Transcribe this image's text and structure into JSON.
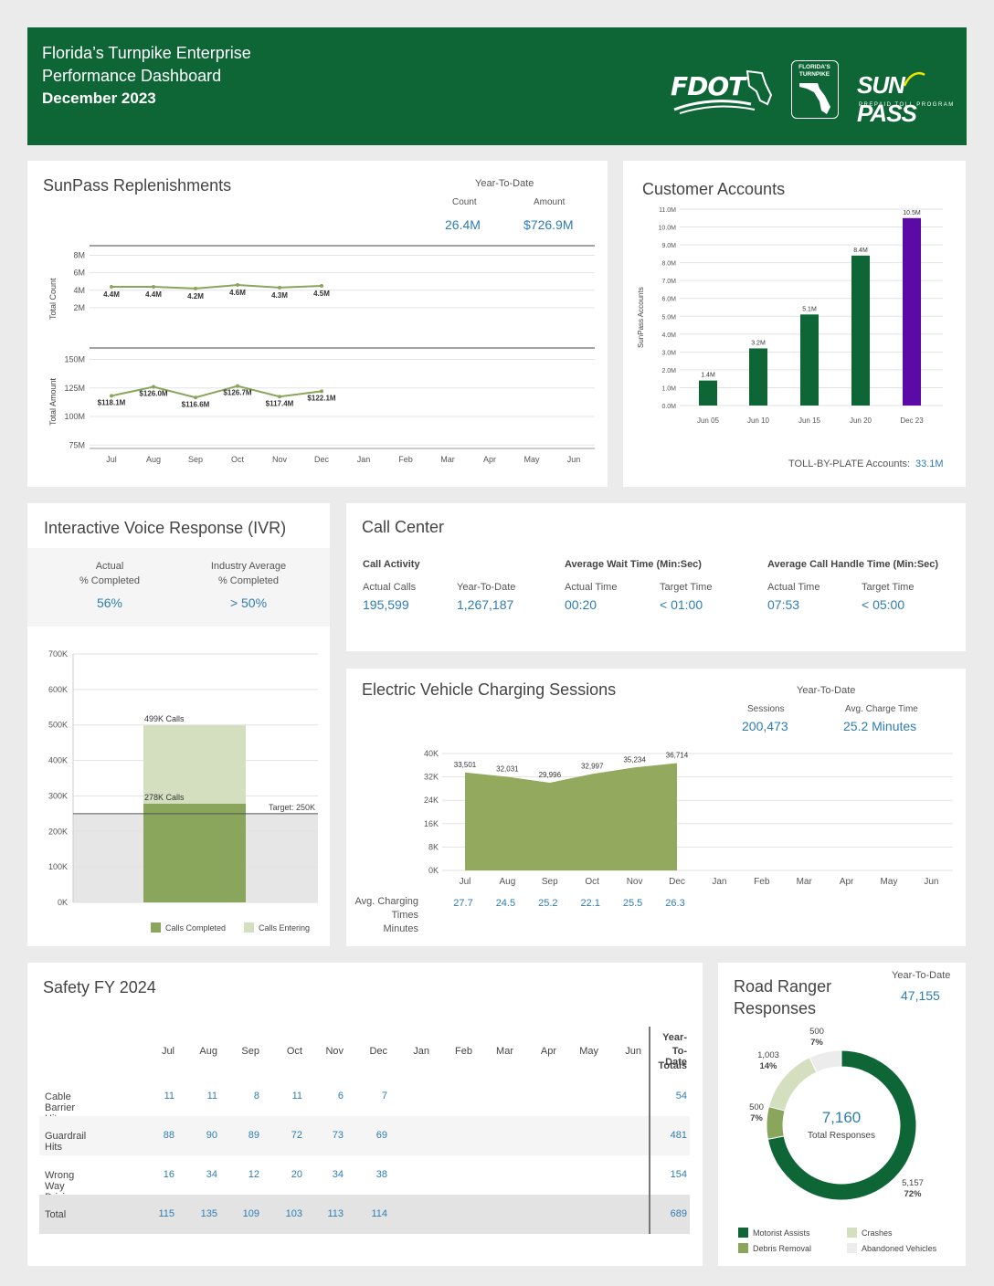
{
  "header": {
    "line1": "Florida’s Turnpike Enterprise",
    "line2": "Performance Dashboard",
    "line3": "December 2023",
    "logo_fdot": "FDOT",
    "logo_turnpike": "FLORIDA'S TURNPIKE",
    "logo_sunpass": "SUN PASS",
    "logo_sunpass_sub": "PREPAID TOLL PROGRAM"
  },
  "replenishments": {
    "title": "SunPass Replenishments",
    "ytd_label": "Year-To-Date",
    "count_label": "Count",
    "amount_label": "Amount",
    "count_value": "26.4M",
    "amount_value": "$726.9M"
  },
  "accounts": {
    "title": "Customer Accounts",
    "tbp_label": "TOLL-BY-PLATE Accounts:",
    "tbp_value": "33.1M"
  },
  "ivr": {
    "title": "Interactive Voice Response (IVR)",
    "actual_label_1": "Actual",
    "actual_label_2": "% Completed",
    "actual_value": "56%",
    "industry_label_1": "Industry Average",
    "industry_label_2": "% Completed",
    "industry_value": "> 50%"
  },
  "callcenter": {
    "title": "Call Center",
    "activity_label": "Call Activity",
    "wait_label": "Average Wait Time (Min:Sec)",
    "handle_label": "Average Call Handle Time (Min:Sec)",
    "actual_calls_label": "Actual Calls",
    "actual_calls_value": "195,599",
    "ytd_label": "Year-To-Date",
    "ytd_value": "1,267,187",
    "wait_actual_label": "Actual Time",
    "wait_actual_value": "00:20",
    "wait_target_label": "Target Time",
    "wait_target_value": "< 01:00",
    "handle_actual_label": "Actual Time",
    "handle_actual_value": "07:53",
    "handle_target_label": "Target Time",
    "handle_target_value": "< 05:00"
  },
  "ev": {
    "title": "Electric Vehicle Charging Sessions",
    "ytd_label": "Year-To-Date",
    "sessions_label": "Sessions",
    "sessions_value": "200,473",
    "charge_label": "Avg. Charge Time",
    "charge_value": "25.2 Minutes",
    "avg_label_1": "Avg. Charging",
    "avg_label_2": "Times",
    "avg_label_3": "Minutes"
  },
  "safety": {
    "title": "Safety FY 2024",
    "ytd_header": [
      "Year-",
      "To-Date",
      "Totals"
    ],
    "months": [
      "Jul",
      "Aug",
      "Sep",
      "Oct",
      "Nov",
      "Dec",
      "Jan",
      "Feb",
      "Mar",
      "Apr",
      "May",
      "Jun"
    ],
    "rows": [
      {
        "label": "Cable Barrier Hits",
        "values": [
          "11",
          "11",
          "8",
          "11",
          "6",
          "7"
        ],
        "total": "54"
      },
      {
        "label": "Guardrail Hits",
        "values": [
          "88",
          "90",
          "89",
          "72",
          "73",
          "69"
        ],
        "total": "481"
      },
      {
        "label": "Wrong Way Driving",
        "values": [
          "16",
          "34",
          "12",
          "20",
          "34",
          "38"
        ],
        "total": "154"
      },
      {
        "label": "Total",
        "values": [
          "115",
          "135",
          "109",
          "103",
          "113",
          "114"
        ],
        "total": "689"
      }
    ]
  },
  "ranger": {
    "title_1": "Road Ranger",
    "title_2": "Responses",
    "ytd_label": "Year-To-Date",
    "ytd_value": "47,155",
    "center_value": "7,160",
    "center_label": "Total Responses"
  },
  "colors": {
    "header_green": "#0e6636",
    "dark_green": "#0e6636",
    "olive": "#8aa55c",
    "light_olive": "#d4dfc0",
    "purple": "#5b0aa6",
    "blue_text": "#2e7db3"
  },
  "chart_data": [
    {
      "id": "replenishment_count",
      "type": "line",
      "ylabel": "Total Count",
      "categories": [
        "Jul",
        "Aug",
        "Sep",
        "Oct",
        "Nov",
        "Dec",
        "Jan",
        "Feb",
        "Mar",
        "Apr",
        "May",
        "Jun"
      ],
      "values": [
        4.4,
        4.4,
        4.2,
        4.6,
        4.3,
        4.5
      ],
      "labels": [
        "4.4M",
        "4.4M",
        "4.2M",
        "4.6M",
        "4.3M",
        "4.5M"
      ],
      "yticks": [
        "2M",
        "4M",
        "6M",
        "8M"
      ],
      "ylim": [
        0,
        9
      ]
    },
    {
      "id": "replenishment_amount",
      "type": "line",
      "ylabel": "Total Amount",
      "categories": [
        "Jul",
        "Aug",
        "Sep",
        "Oct",
        "Nov",
        "Dec",
        "Jan",
        "Feb",
        "Mar",
        "Apr",
        "May",
        "Jun"
      ],
      "values": [
        118.1,
        126.0,
        116.6,
        126.7,
        117.4,
        122.1
      ],
      "labels": [
        "$118.1M",
        "$126.0M",
        "$116.6M",
        "$126.7M",
        "$117.4M",
        "$122.1M"
      ],
      "yticks": [
        "75M",
        "100M",
        "125M",
        "150M"
      ],
      "ylim": [
        72,
        160
      ]
    },
    {
      "id": "customer_accounts",
      "type": "bar",
      "ylabel": "SunPass Accounts",
      "categories": [
        "Jun 05",
        "Jun 10",
        "Jun 15",
        "Jun 20",
        "Dec 23"
      ],
      "values": [
        1.4,
        3.2,
        5.1,
        8.4,
        10.5
      ],
      "labels": [
        "1.4M",
        "3.2M",
        "5.1M",
        "8.4M",
        "10.5M"
      ],
      "colors": [
        "#0e6636",
        "#0e6636",
        "#0e6636",
        "#0e6636",
        "#5b0aa6"
      ],
      "yticks": [
        "0.0M",
        "1.0M",
        "2.0M",
        "3.0M",
        "4.0M",
        "5.0M",
        "6.0M",
        "7.0M",
        "8.0M",
        "9.0M",
        "10.0M",
        "11.0M"
      ],
      "ylim": [
        0,
        11
      ]
    },
    {
      "id": "ivr_calls",
      "type": "bar",
      "categories": [
        "Calls"
      ],
      "series": [
        {
          "name": "Calls Completed",
          "values": [
            278
          ]
        },
        {
          "name": "Calls Entering",
          "values": [
            499
          ]
        }
      ],
      "labels": [
        "278K Calls",
        "499K Calls"
      ],
      "target": 250,
      "target_label": "Target: 250K",
      "yticks": [
        "0K",
        "100K",
        "200K",
        "300K",
        "400K",
        "500K",
        "600K",
        "700K"
      ],
      "ylim": [
        0,
        700
      ]
    },
    {
      "id": "ev_sessions",
      "type": "area",
      "categories": [
        "Jul",
        "Aug",
        "Sep",
        "Oct",
        "Nov",
        "Dec",
        "Jan",
        "Feb",
        "Mar",
        "Apr",
        "May",
        "Jun"
      ],
      "values": [
        33501,
        32031,
        29996,
        32997,
        35234,
        36714
      ],
      "labels": [
        "33,501",
        "32,031",
        "29,996",
        "32,997",
        "35,234",
        "36,714"
      ],
      "avg_charging_minutes": [
        "27.7",
        "24.5",
        "25.2",
        "22.1",
        "25.5",
        "26.3"
      ],
      "yticks": [
        "0K",
        "8K",
        "16K",
        "24K",
        "32K",
        "40K"
      ],
      "ylim": [
        0,
        40000
      ]
    },
    {
      "id": "road_ranger",
      "type": "pie",
      "categories": [
        "Motorist Assists",
        "Debris Removal",
        "Crashes",
        "Abandoned Vehicles"
      ],
      "values": [
        5157,
        500,
        1003,
        500
      ],
      "labels": [
        [
          "5,157",
          "72%"
        ],
        [
          "500",
          "7%"
        ],
        [
          "1,003",
          "14%"
        ],
        [
          "500",
          "7%"
        ]
      ],
      "colors": [
        "#0e6636",
        "#8aa55c",
        "#d4dfc0",
        "#ececec"
      ]
    }
  ]
}
